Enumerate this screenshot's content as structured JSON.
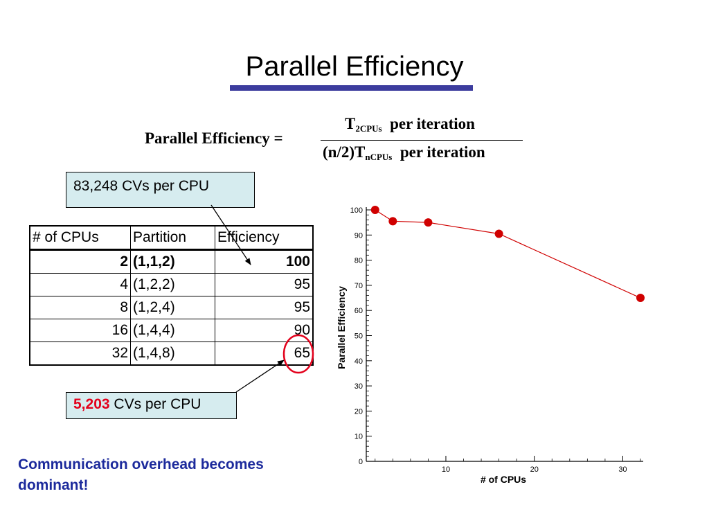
{
  "slide": {
    "title": "Parallel Efficiency"
  },
  "formula": {
    "lhs": "Parallel Efficiency =",
    "num_t": "T",
    "num_sub": "2CPUs",
    "num_rest": "per iteration",
    "den_pre": "(n/2)T",
    "den_sub": "nCPUs",
    "den_rest": "per iteration"
  },
  "callouts": {
    "top": "83,248 CVs per CPU",
    "bottom_number": "5,203",
    "bottom_rest": "CVs per CPU"
  },
  "table": {
    "headers": [
      "# of CPUs",
      "Partition",
      "Efficiency"
    ],
    "rows": [
      {
        "cpus": "2",
        "partition": "(1,1,2)",
        "efficiency": "100"
      },
      {
        "cpus": "4",
        "partition": "(1,2,2)",
        "efficiency": "95"
      },
      {
        "cpus": "8",
        "partition": "(1,2,4)",
        "efficiency": "95"
      },
      {
        "cpus": "16",
        "partition": "(1,4,4)",
        "efficiency": "90"
      },
      {
        "cpus": "32",
        "partition": "(1,4,8)",
        "efficiency": "65"
      }
    ]
  },
  "note": "Communication overhead becomes dominant!",
  "colors": {
    "accent": "#3c3c9e",
    "callout_bg": "#d6ecef",
    "highlight": "#e3001b",
    "note": "#1c2a9c",
    "series": "#d00000"
  },
  "chart_data": {
    "type": "line",
    "xlabel": "# of CPUs",
    "ylabel": "Parallel Efficiency",
    "xlim": [
      1,
      32
    ],
    "ylim": [
      0,
      100
    ],
    "xticks": [
      10,
      20,
      30
    ],
    "yticks": [
      0,
      10,
      20,
      30,
      40,
      50,
      60,
      70,
      80,
      90,
      100
    ],
    "grid": false,
    "x": [
      2,
      4,
      8,
      16,
      32
    ],
    "series": [
      {
        "values": [
          100,
          95.5,
          95,
          90.5,
          65
        ]
      }
    ]
  }
}
